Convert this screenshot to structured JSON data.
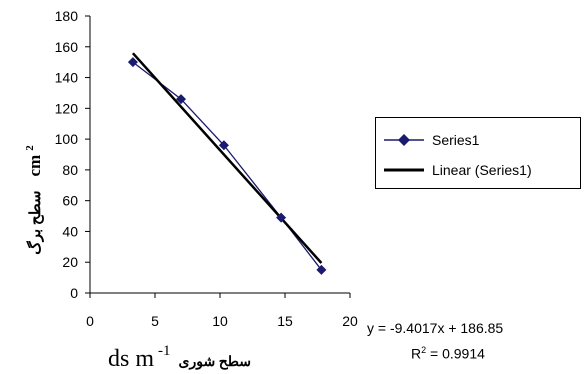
{
  "chart_data": {
    "type": "scatter",
    "xlim": [
      0,
      20
    ],
    "ylim": [
      0,
      180
    ],
    "xticks": [
      "0",
      "5",
      "10",
      "15",
      "20"
    ],
    "yticks": [
      "0",
      "20",
      "40",
      "60",
      "80",
      "100",
      "120",
      "140",
      "160",
      "180"
    ],
    "xlabel_latin": "ds m",
    "xlabel_sup": "-1",
    "xlabel_arabic": "سطح شوری",
    "ylabel_latin": "cm",
    "ylabel_sup": "2",
    "ylabel_arabic": "سطح برگ",
    "series": [
      {
        "name": "Series1",
        "color": "#1a1a6e",
        "marker": "diamond",
        "x": [
          3.3,
          7.0,
          10.3,
          14.7,
          17.8
        ],
        "y": [
          150,
          126,
          96,
          49,
          15
        ]
      }
    ],
    "trendline": {
      "name": "Linear (Series1)",
      "color": "#000000",
      "slope": -9.4017,
      "intercept": 186.85,
      "x_range": [
        3.3,
        17.8
      ],
      "equation": "y = -9.4017x + 186.85",
      "r2_prefix": "R",
      "r2_sup": "2",
      "r2_value": " = 0.9914"
    },
    "grid": false,
    "legend_position": "right"
  }
}
